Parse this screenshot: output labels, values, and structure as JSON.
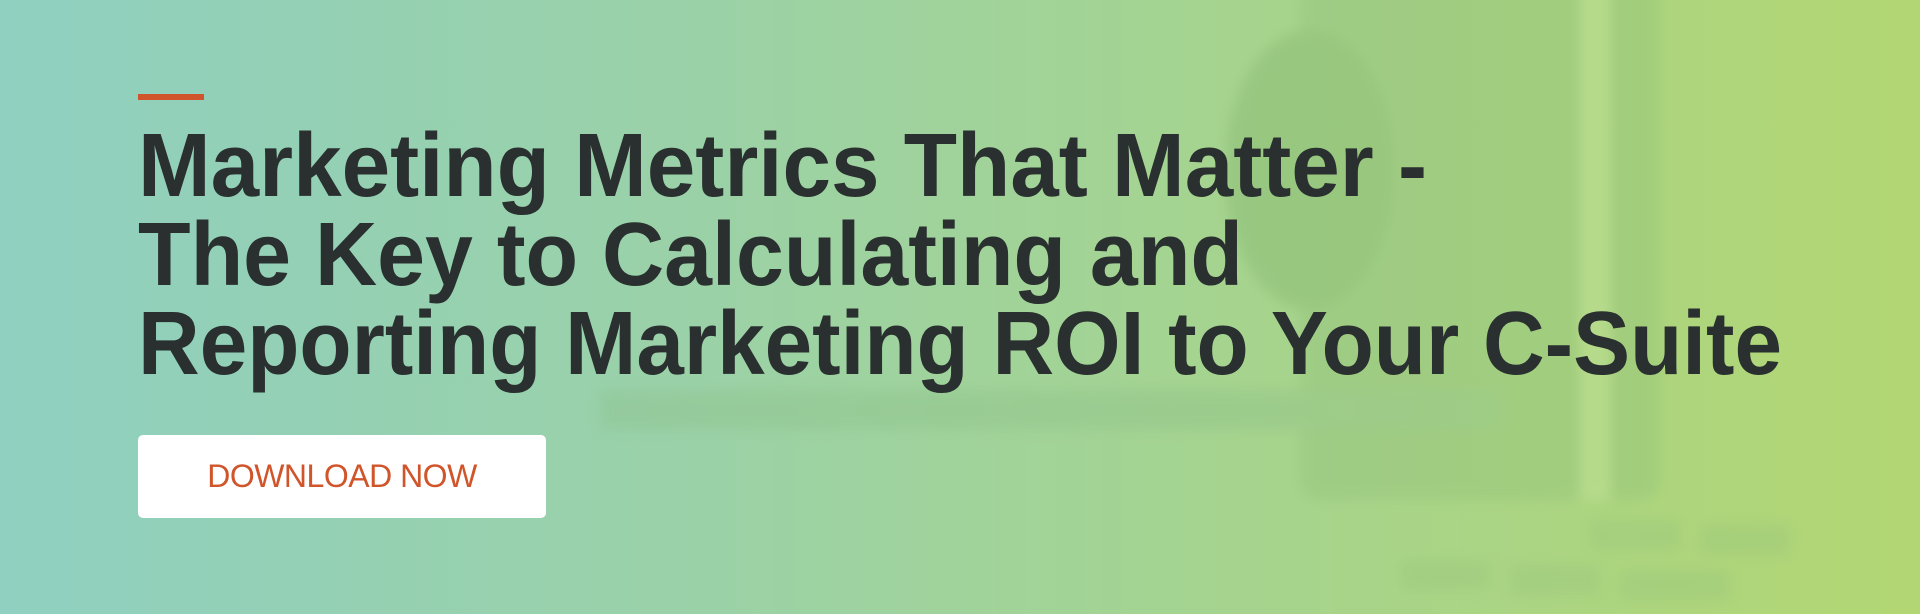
{
  "banner": {
    "title_lines": [
      "Marketing Metrics That Matter -",
      "The Key to Calculating and",
      "Reporting Marketing ROI to Your C-Suite"
    ],
    "cta_label": "DOWNLOAD NOW"
  },
  "colors": {
    "accent": "#d0552a",
    "title_text": "#2a2f2f",
    "button_bg": "#ffffff",
    "gradient_left": "#8fd0c0",
    "gradient_right": "#b2d673"
  }
}
